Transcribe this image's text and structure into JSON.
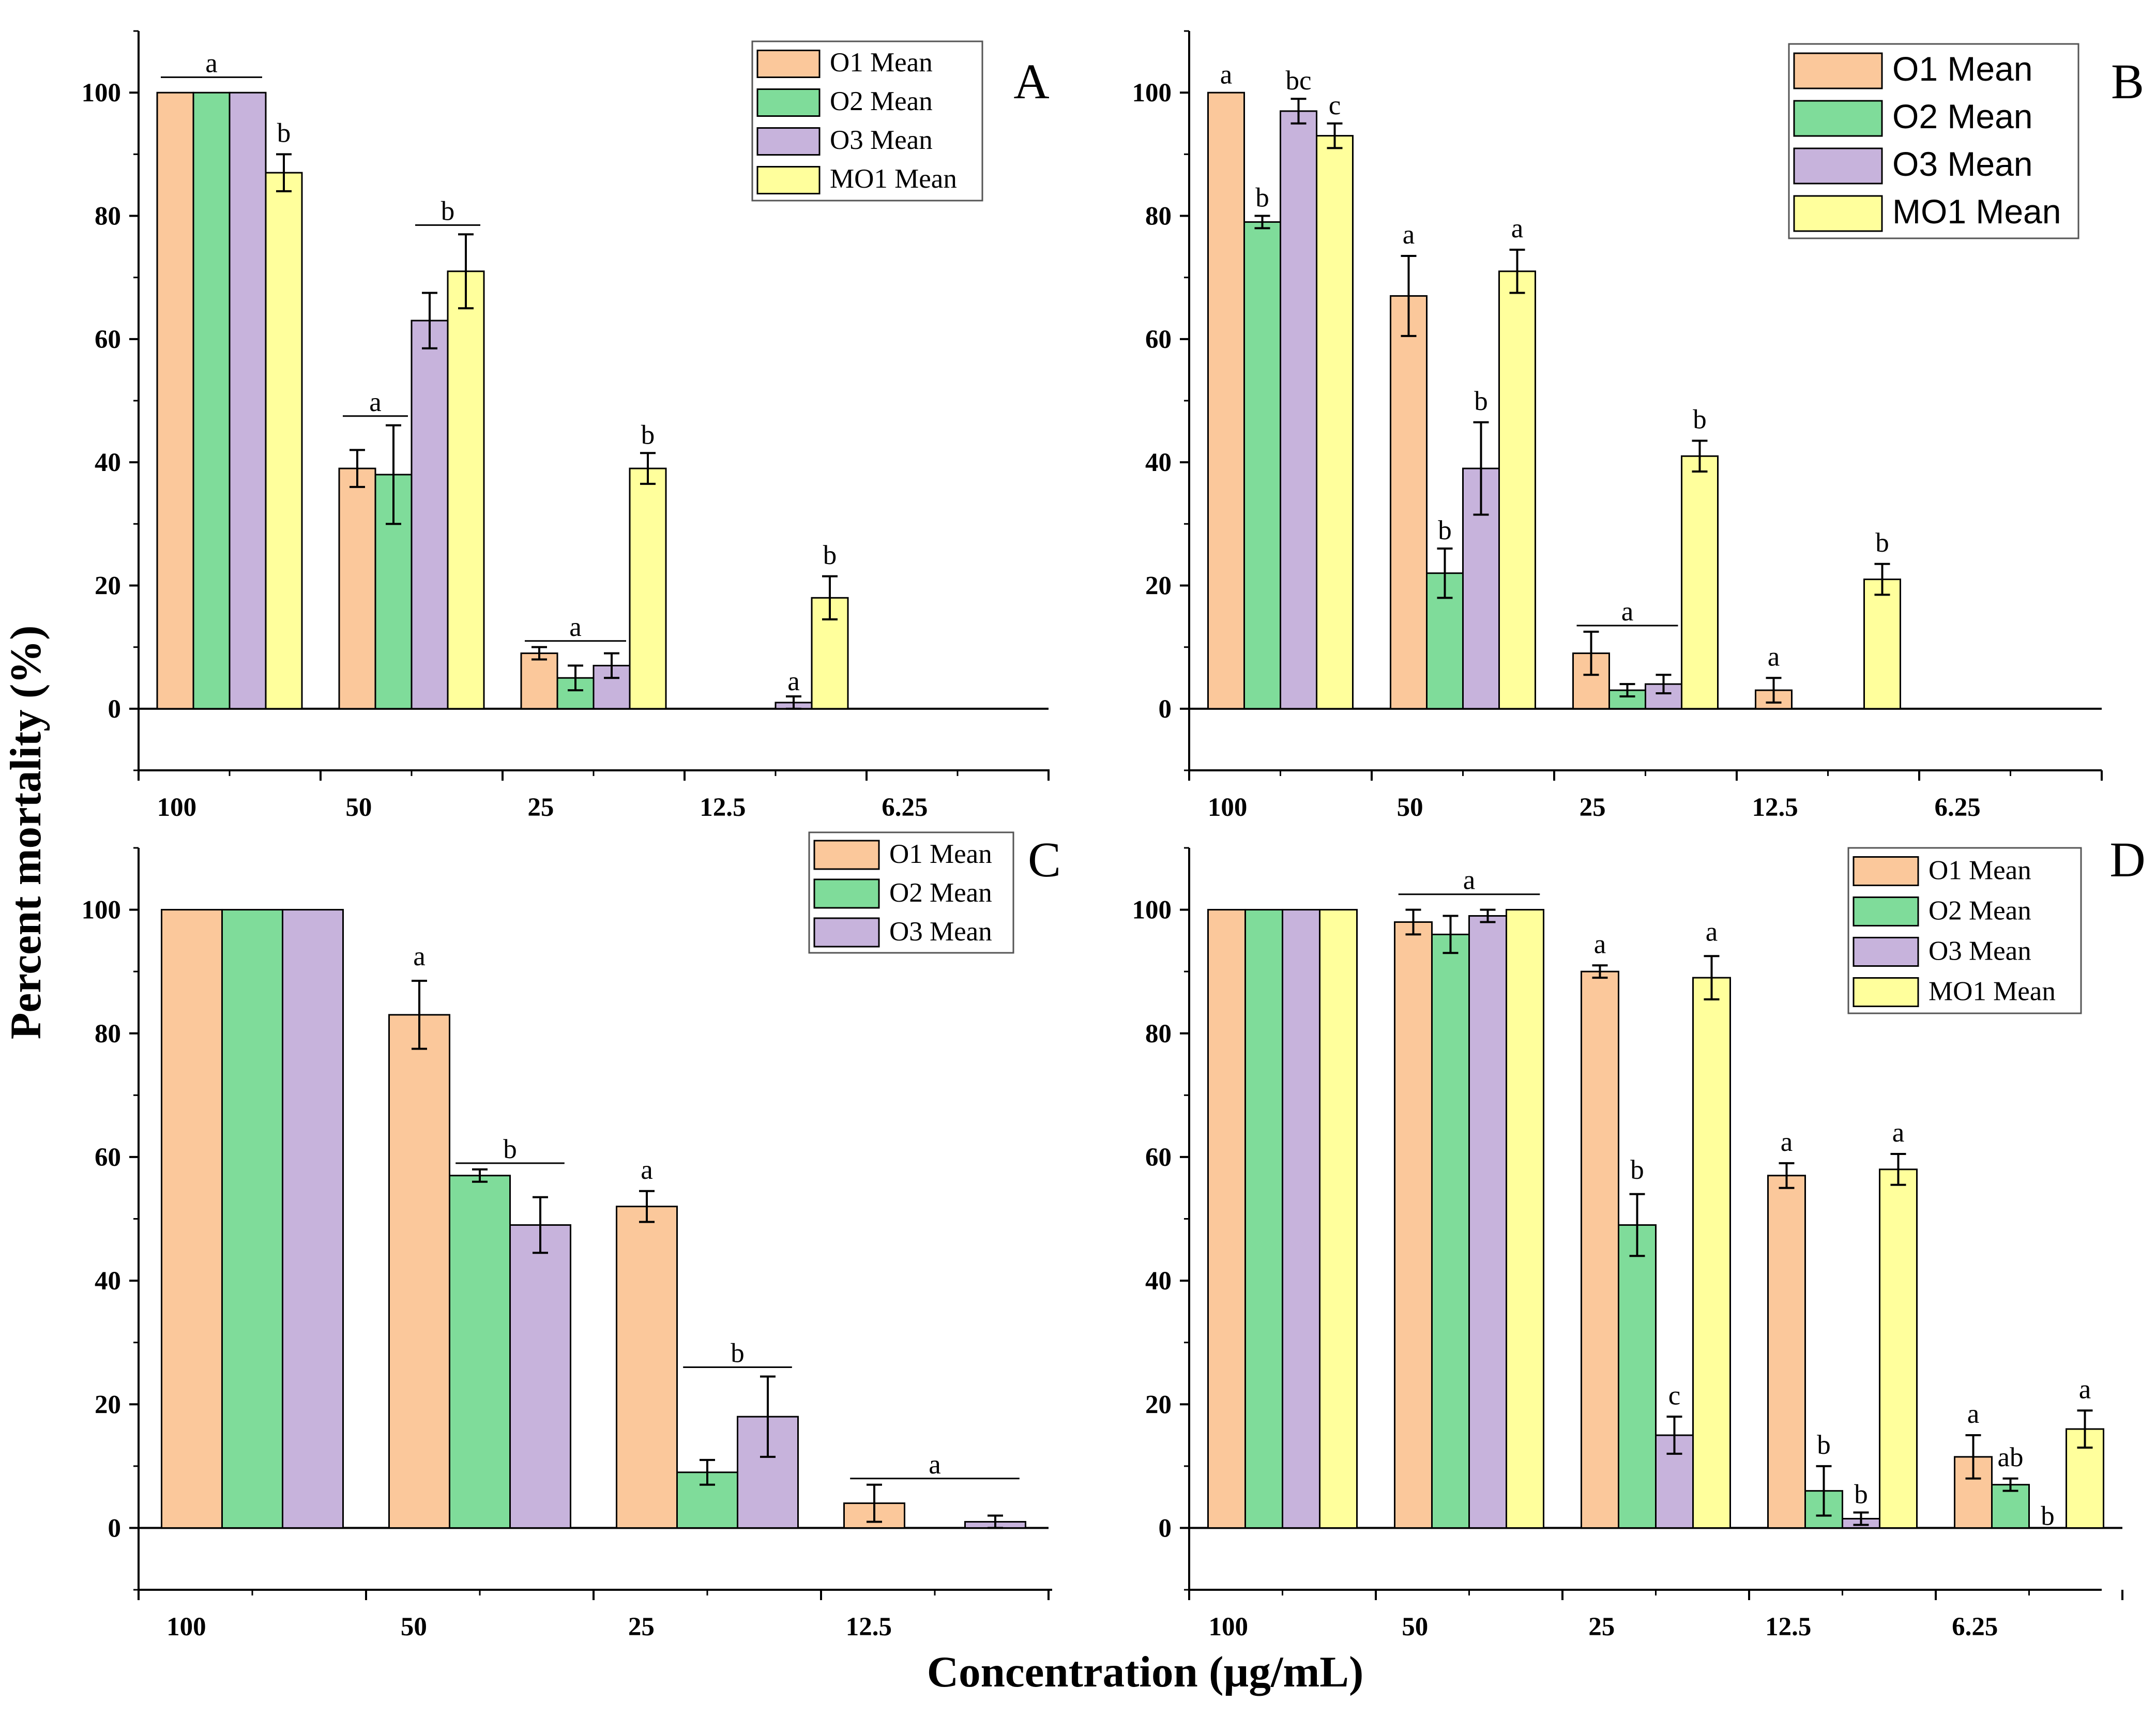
{
  "figure": {
    "ylabel": "Percent mortality (%)",
    "xlabel": "Concentration (µg/mL)"
  },
  "colors": {
    "O1": "#fbc89b",
    "O2": "#7fdc9a",
    "O3": "#c7b3dc",
    "MO1": "#ffff9c"
  },
  "chart_data": [
    {
      "panel": "A",
      "type": "bar",
      "categories": [
        "100",
        "50",
        "25",
        "12.5",
        "6.25"
      ],
      "ylim": [
        -10,
        110
      ],
      "yticks": [
        0,
        20,
        40,
        60,
        80,
        100
      ],
      "legend": [
        "O1 Mean",
        "O2 Mean",
        "O3 Mean",
        "MO1 Mean"
      ],
      "legend_style": "serif",
      "series": [
        {
          "name": "O1 Mean",
          "key": "O1",
          "values": [
            100,
            39,
            9,
            0,
            0
          ],
          "errors": [
            0,
            3,
            1,
            0,
            0
          ]
        },
        {
          "name": "O2 Mean",
          "key": "O2",
          "values": [
            100,
            38,
            5,
            0,
            0
          ],
          "errors": [
            0,
            8,
            2,
            0,
            0
          ]
        },
        {
          "name": "O3 Mean",
          "key": "O3",
          "values": [
            100,
            63,
            7,
            1,
            0
          ],
          "errors": [
            0,
            4.5,
            2,
            1,
            0
          ]
        },
        {
          "name": "MO1 Mean",
          "key": "MO1",
          "values": [
            87,
            71,
            39,
            18,
            0
          ],
          "errors": [
            3,
            6,
            2.5,
            3.5,
            0
          ]
        }
      ],
      "annotations": [
        {
          "text": "a",
          "cat": 0,
          "from": 0,
          "to": 2,
          "y": 102.5
        },
        {
          "text": "b",
          "cat": 0,
          "series": 3,
          "y": 92
        },
        {
          "text": "a",
          "cat": 1,
          "from": 0,
          "to": 1,
          "y": 47.5
        },
        {
          "text": "b",
          "cat": 1,
          "from": 2,
          "to": 3,
          "y": 78.5
        },
        {
          "text": "a",
          "cat": 2,
          "from": 0,
          "to": 2,
          "y": 11
        },
        {
          "text": "b",
          "cat": 2,
          "series": 3,
          "y": 43
        },
        {
          "text": "a",
          "cat": 3,
          "series": 2,
          "y": 3
        },
        {
          "text": "b",
          "cat": 3,
          "series": 3,
          "y": 23.5
        }
      ]
    },
    {
      "panel": "B",
      "type": "bar",
      "categories": [
        "100",
        "50",
        "25",
        "12.5",
        "6.25"
      ],
      "ylim": [
        -10,
        110
      ],
      "yticks": [
        0,
        20,
        40,
        60,
        80,
        100
      ],
      "legend": [
        "O1 Mean",
        "O2 Mean",
        "O3 Mean",
        "MO1 Mean"
      ],
      "legend_style": "sans",
      "series": [
        {
          "name": "O1 Mean",
          "key": "O1",
          "values": [
            100,
            67,
            9,
            3,
            0
          ],
          "errors": [
            0,
            6.5,
            3.5,
            2,
            0
          ]
        },
        {
          "name": "O2 Mean",
          "key": "O2",
          "values": [
            79,
            22,
            3,
            0,
            0
          ],
          "errors": [
            1,
            4,
            1,
            0,
            0
          ]
        },
        {
          "name": "O3 Mean",
          "key": "O3",
          "values": [
            97,
            39,
            4,
            0,
            0
          ],
          "errors": [
            2,
            7.5,
            1.5,
            0,
            0
          ]
        },
        {
          "name": "MO1 Mean",
          "key": "MO1",
          "values": [
            93,
            71,
            41,
            21,
            0
          ],
          "errors": [
            2,
            3.5,
            2.5,
            2.5,
            0
          ]
        }
      ],
      "annotations": [
        {
          "text": "a",
          "cat": 0,
          "series": 0,
          "y": 101.5
        },
        {
          "text": "b",
          "cat": 0,
          "series": 1,
          "y": 81.5
        },
        {
          "text": "bc",
          "cat": 0,
          "series": 2,
          "y": 100.5
        },
        {
          "text": "c",
          "cat": 0,
          "series": 3,
          "y": 96.5
        },
        {
          "text": "a",
          "cat": 1,
          "series": 0,
          "y": 75.5
        },
        {
          "text": "b",
          "cat": 1,
          "series": 1,
          "y": 27.5
        },
        {
          "text": "b",
          "cat": 1,
          "series": 2,
          "y": 48.5
        },
        {
          "text": "a",
          "cat": 1,
          "series": 3,
          "y": 76.5
        },
        {
          "text": "a",
          "cat": 2,
          "from": 0,
          "to": 2,
          "y": 13.5
        },
        {
          "text": "b",
          "cat": 2,
          "series": 3,
          "y": 45.5
        },
        {
          "text": "a",
          "cat": 3,
          "series": 0,
          "y": 7
        },
        {
          "text": "b",
          "cat": 3,
          "series": 3,
          "y": 25.5
        }
      ]
    },
    {
      "panel": "C",
      "type": "bar",
      "categories": [
        "100",
        "50",
        "25",
        "12.5"
      ],
      "ylim": [
        -10,
        110
      ],
      "yticks": [
        0,
        20,
        40,
        60,
        80,
        100
      ],
      "legend": [
        "O1 Mean",
        "O2 Mean",
        "O3 Mean"
      ],
      "legend_style": "serif",
      "series": [
        {
          "name": "O1 Mean",
          "key": "O1",
          "values": [
            100,
            83,
            52,
            4
          ],
          "errors": [
            0,
            5.5,
            2.5,
            3
          ]
        },
        {
          "name": "O2 Mean",
          "key": "O2",
          "values": [
            100,
            57,
            9,
            0
          ],
          "errors": [
            0,
            1,
            2,
            0
          ]
        },
        {
          "name": "O3 Mean",
          "key": "O3",
          "values": [
            100,
            49,
            18,
            1
          ],
          "errors": [
            0,
            4.5,
            6.5,
            1
          ]
        }
      ],
      "annotations": [
        {
          "text": "a",
          "cat": 1,
          "series": 0,
          "y": 91
        },
        {
          "text": "b",
          "cat": 1,
          "from": 1,
          "to": 2,
          "y": 59
        },
        {
          "text": "a",
          "cat": 2,
          "series": 0,
          "y": 56.5
        },
        {
          "text": "b",
          "cat": 2,
          "from": 1,
          "to": 2,
          "y": 26
        },
        {
          "text": "a",
          "cat": 3,
          "from": 0,
          "to": 2,
          "y": 8
        }
      ]
    },
    {
      "panel": "D",
      "type": "bar",
      "categories": [
        "100",
        "50",
        "25",
        "12.5",
        "6.25"
      ],
      "ylim": [
        -10,
        110
      ],
      "yticks": [
        0,
        20,
        40,
        60,
        80,
        100
      ],
      "legend": [
        "O1 Mean",
        "O2 Mean",
        "O3 Mean",
        "MO1 Mean"
      ],
      "legend_style": "serif",
      "series": [
        {
          "name": "O1 Mean",
          "key": "O1",
          "values": [
            100,
            98,
            90,
            57,
            11.5
          ],
          "errors": [
            0,
            2,
            1,
            2,
            3.5
          ]
        },
        {
          "name": "O2 Mean",
          "key": "O2",
          "values": [
            100,
            96,
            49,
            6,
            7
          ],
          "errors": [
            0,
            3,
            5,
            4,
            1
          ]
        },
        {
          "name": "O3 Mean",
          "key": "O3",
          "values": [
            100,
            99,
            15,
            1.5,
            0
          ],
          "errors": [
            0,
            1,
            3,
            1,
            0
          ]
        },
        {
          "name": "MO1 Mean",
          "key": "MO1",
          "values": [
            100,
            100,
            89,
            58,
            16
          ],
          "errors": [
            0,
            0,
            3.5,
            2.5,
            3
          ]
        }
      ],
      "annotations": [
        {
          "text": "a",
          "cat": 1,
          "from": 0,
          "to": 3,
          "y": 102.5
        },
        {
          "text": "a",
          "cat": 2,
          "series": 0,
          "y": 93
        },
        {
          "text": "b",
          "cat": 2,
          "series": 1,
          "y": 56.5
        },
        {
          "text": "c",
          "cat": 2,
          "series": 2,
          "y": 20
        },
        {
          "text": "a",
          "cat": 2,
          "series": 3,
          "y": 95
        },
        {
          "text": "a",
          "cat": 3,
          "series": 0,
          "y": 61
        },
        {
          "text": "b",
          "cat": 3,
          "series": 1,
          "y": 12
        },
        {
          "text": "b",
          "cat": 3,
          "series": 2,
          "y": 4
        },
        {
          "text": "a",
          "cat": 3,
          "series": 3,
          "y": 62.5
        },
        {
          "text": "a",
          "cat": 4,
          "series": 0,
          "y": 17
        },
        {
          "text": "ab",
          "cat": 4,
          "series": 1,
          "y": 10
        },
        {
          "text": "b",
          "cat": 4,
          "series": 2,
          "y": 0.5
        },
        {
          "text": "a",
          "cat": 4,
          "series": 3,
          "y": 21
        }
      ]
    }
  ]
}
